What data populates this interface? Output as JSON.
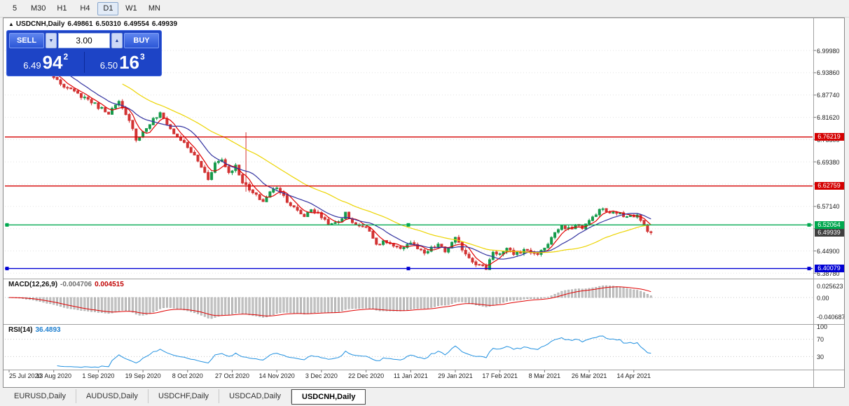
{
  "toolbar": {
    "timeframes": [
      {
        "label": "5",
        "active": false
      },
      {
        "label": "M30",
        "active": false
      },
      {
        "label": "H1",
        "active": false
      },
      {
        "label": "H4",
        "active": false
      },
      {
        "label": "D1",
        "active": true
      },
      {
        "label": "W1",
        "active": false
      },
      {
        "label": "MN",
        "active": false
      }
    ]
  },
  "chart": {
    "header": {
      "collapse_icon": "▲",
      "symbol": "USDCNH,Daily",
      "open": "6.49861",
      "high": "6.50310",
      "low": "6.49554",
      "close": "6.49939"
    },
    "trade_panel": {
      "sell_label": "SELL",
      "buy_label": "BUY",
      "volume": "3.00",
      "spinner_down_icon": "▼",
      "spinner_up_icon": "▲",
      "sell_price": {
        "big_figure": "6.49",
        "pips": "94",
        "pipette": "2"
      },
      "buy_price": {
        "big_figure": "6.50",
        "pips": "16",
        "pipette": "3"
      }
    },
    "levels": [
      {
        "label": "6.76219",
        "value": 6.76219,
        "color": "#d40000",
        "selected": false
      },
      {
        "label": "6.62759",
        "value": 6.62759,
        "color": "#d40000",
        "selected": false
      },
      {
        "label": "6.52064",
        "value": 6.52064,
        "color": "#00a84f",
        "selected": true
      },
      {
        "label": "6.40079",
        "value": 6.40079,
        "color": "#0000d4",
        "selected": true
      }
    ],
    "current_price": {
      "label": "6.49939",
      "value": 6.49939,
      "color": "#3f3f3f"
    }
  },
  "macd": {
    "title": "MACD(12,26,9)",
    "main_value": "-0.004706",
    "signal_value": "0.004515",
    "axis": [
      "0.025623",
      "0.00",
      "-0.040687"
    ]
  },
  "rsi": {
    "title": "RSI(14)",
    "value": "36.4893",
    "axis": [
      "100",
      "70",
      "30"
    ]
  },
  "tabs": [
    {
      "label": "EURUSD,Daily",
      "active": false
    },
    {
      "label": "AUDUSD,Daily",
      "active": false
    },
    {
      "label": "USDCHF,Daily",
      "active": false
    },
    {
      "label": "USDCAD,Daily",
      "active": false
    },
    {
      "label": "USDCNH,Daily",
      "active": true
    }
  ],
  "chart_data": {
    "type": "candlestick",
    "symbol": "USDCNH",
    "timeframe": "Daily",
    "bars": 188,
    "y_ticks": [
      "6.99980",
      "6.93860",
      "6.87740",
      "6.81620",
      "6.75500",
      "6.69380",
      "6.63260",
      "6.57140",
      "6.51020",
      "6.44900",
      "6.38780"
    ],
    "x_labels": [
      "25 Jul 2020",
      "13 Aug 2020",
      "1 Sep 2020",
      "19 Sep 2020",
      "8 Oct 2020",
      "27 Oct 2020",
      "14 Nov 2020",
      "3 Dec 2020",
      "22 Dec 2020",
      "11 Jan 2021",
      "29 Jan 2021",
      "17 Feb 2021",
      "8 Mar 2021",
      "26 Mar 2021",
      "14 Apr 2021"
    ],
    "price_anchors": [
      [
        0,
        6.995
      ],
      [
        6,
        6.97
      ],
      [
        13,
        6.93
      ],
      [
        17,
        6.895
      ],
      [
        20,
        6.88
      ],
      [
        23,
        6.866
      ],
      [
        26,
        6.845
      ],
      [
        29,
        6.83
      ],
      [
        32,
        6.856
      ],
      [
        34,
        6.82
      ],
      [
        36,
        6.79
      ],
      [
        37,
        6.755
      ],
      [
        39,
        6.775
      ],
      [
        42,
        6.81
      ],
      [
        44,
        6.825
      ],
      [
        46,
        6.8
      ],
      [
        48,
        6.77
      ],
      [
        50,
        6.755
      ],
      [
        52,
        6.732
      ],
      [
        54,
        6.71
      ],
      [
        56,
        6.68
      ],
      [
        58,
        6.648
      ],
      [
        60,
        6.69
      ],
      [
        62,
        6.7
      ],
      [
        64,
        6.665
      ],
      [
        66,
        6.682
      ],
      [
        68,
        6.64
      ],
      [
        70,
        6.615
      ],
      [
        72,
        6.6
      ],
      [
        74,
        6.585
      ],
      [
        76,
        6.61
      ],
      [
        78,
        6.625
      ],
      [
        80,
        6.6
      ],
      [
        82,
        6.576
      ],
      [
        84,
        6.558
      ],
      [
        86,
        6.545
      ],
      [
        88,
        6.565
      ],
      [
        90,
        6.55
      ],
      [
        92,
        6.535
      ],
      [
        94,
        6.52
      ],
      [
        96,
        6.53
      ],
      [
        98,
        6.552
      ],
      [
        100,
        6.53
      ],
      [
        102,
        6.515
      ],
      [
        104,
        6.52
      ],
      [
        106,
        6.488
      ],
      [
        107,
        6.462
      ],
      [
        109,
        6.476
      ],
      [
        111,
        6.465
      ],
      [
        113,
        6.455
      ],
      [
        115,
        6.462
      ],
      [
        117,
        6.472
      ],
      [
        119,
        6.455
      ],
      [
        121,
        6.44
      ],
      [
        123,
        6.455
      ],
      [
        125,
        6.467
      ],
      [
        127,
        6.447
      ],
      [
        129,
        6.47
      ],
      [
        130,
        6.482
      ],
      [
        132,
        6.455
      ],
      [
        134,
        6.432
      ],
      [
        136,
        6.415
      ],
      [
        138,
        6.405
      ],
      [
        139,
        6.401
      ],
      [
        141,
        6.448
      ],
      [
        143,
        6.44
      ],
      [
        145,
        6.452
      ],
      [
        147,
        6.442
      ],
      [
        149,
        6.447
      ],
      [
        151,
        6.452
      ],
      [
        153,
        6.44
      ],
      [
        155,
        6.447
      ],
      [
        157,
        6.47
      ],
      [
        159,
        6.5
      ],
      [
        161,
        6.514
      ],
      [
        163,
        6.508
      ],
      [
        165,
        6.52
      ],
      [
        167,
        6.514
      ],
      [
        169,
        6.53
      ],
      [
        171,
        6.553
      ],
      [
        173,
        6.565
      ],
      [
        175,
        6.55
      ],
      [
        177,
        6.556
      ],
      [
        179,
        6.545
      ],
      [
        181,
        6.55
      ],
      [
        183,
        6.545
      ],
      [
        184,
        6.53
      ],
      [
        185,
        6.52
      ],
      [
        186,
        6.508
      ],
      [
        187,
        6.49939
      ]
    ],
    "special_wicks": [
      [
        69,
        6.775,
        6.612
      ]
    ],
    "up_color": "#169b4b",
    "down_color": "#d23333",
    "moving_averages": [
      {
        "period": 5,
        "color": "#e00000"
      },
      {
        "period": 12,
        "color": "#3333a0"
      },
      {
        "period": 34,
        "color": "#ecd400"
      }
    ],
    "levels": [
      6.76219,
      6.62759,
      6.52064,
      6.40079
    ],
    "indicators": {
      "macd": {
        "fast": 12,
        "slow": 26,
        "signal": 9
      },
      "rsi": {
        "period": 14,
        "bands": [
          70,
          30
        ]
      }
    }
  }
}
